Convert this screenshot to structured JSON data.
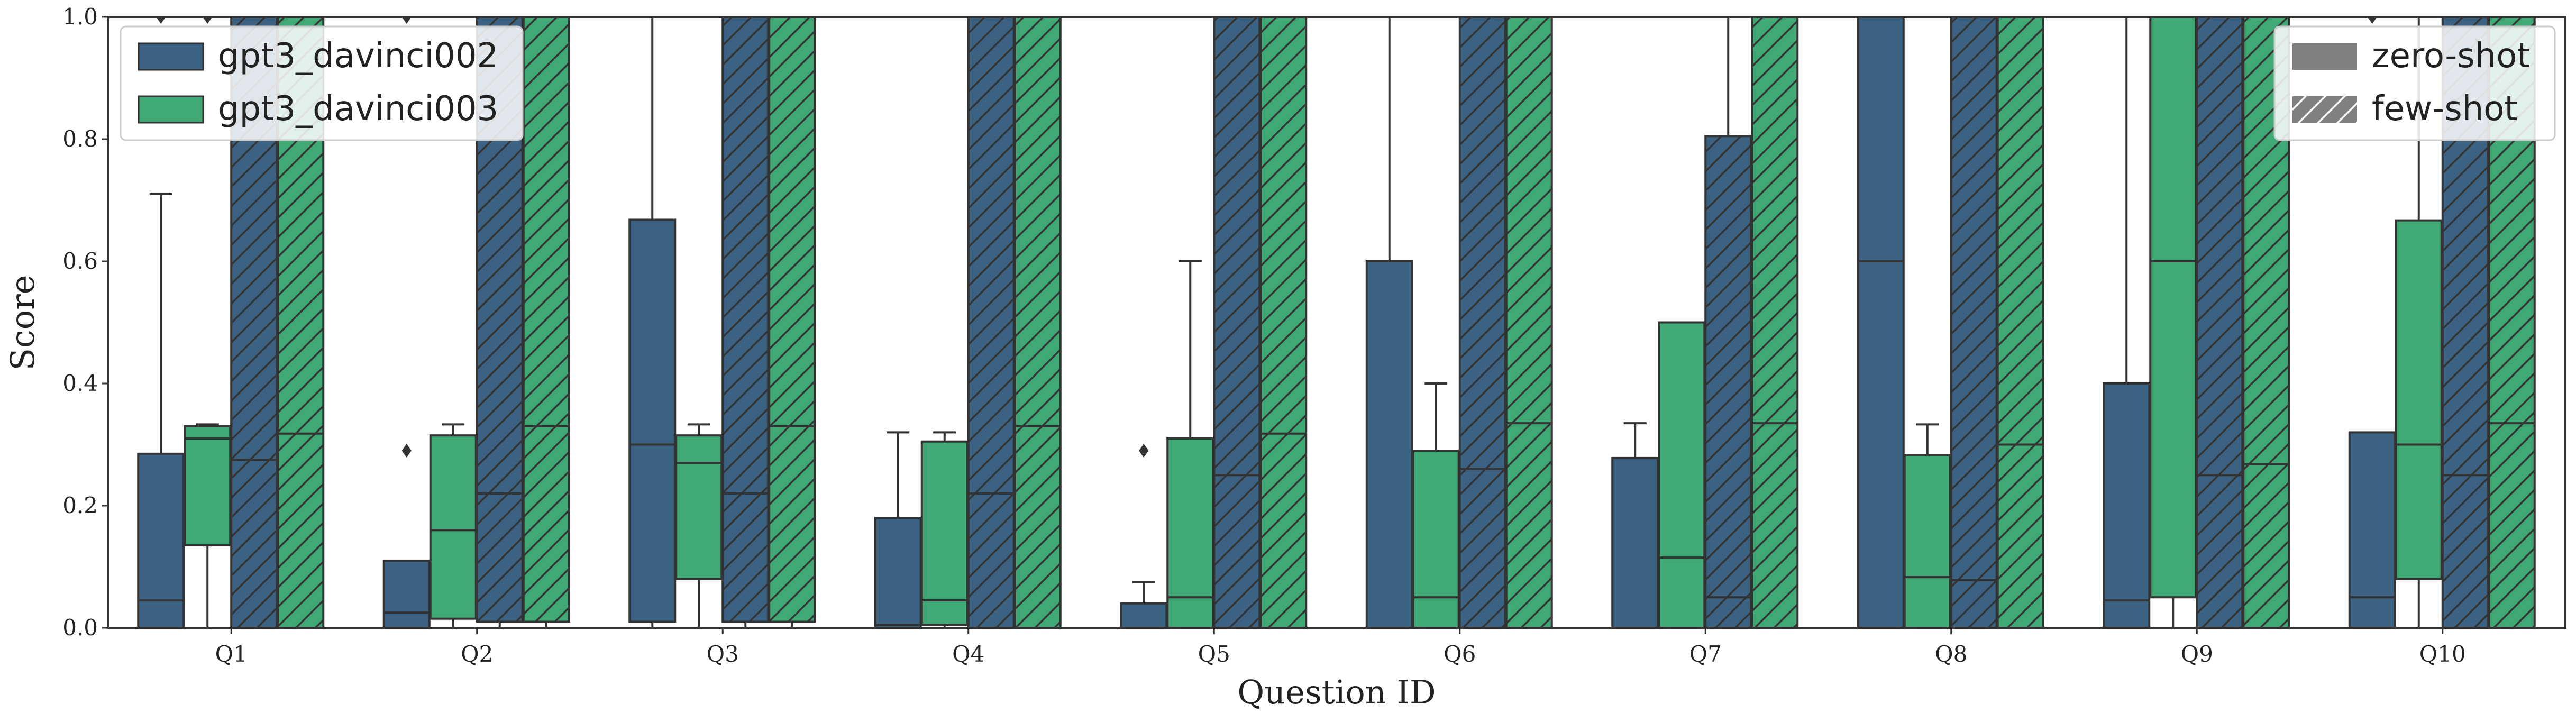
{
  "chart_data": {
    "type": "box",
    "title": "",
    "xlabel": "Question ID",
    "ylabel": "Score",
    "ylim": [
      0,
      1
    ],
    "yticks": [
      "0.0",
      "0.2",
      "0.4",
      "0.6",
      "0.8",
      "1.0"
    ],
    "grid": false,
    "categories": [
      "Q1",
      "Q2",
      "Q3",
      "Q4",
      "Q5",
      "Q6",
      "Q7",
      "Q8",
      "Q9",
      "Q10"
    ],
    "colors": {
      "gpt3_davinci002": "#3b6282",
      "gpt3_davinci003": "#3fa874",
      "edge": "#333333"
    },
    "legend_models": {
      "placement": "top-left",
      "entries": [
        "gpt3_davinci002",
        "gpt3_davinci003"
      ]
    },
    "legend_settings": {
      "placement": "top-right",
      "entries": [
        "zero-shot",
        "few-shot"
      ]
    },
    "series": [
      {
        "model": "gpt3_davinci002",
        "setting": "zero-shot",
        "boxes": [
          {
            "q1": 0,
            "median": 0.045,
            "q3": 0.285,
            "wlo": 0,
            "whi": 0.71,
            "fliers": [
              1.0
            ]
          },
          {
            "q1": 0,
            "median": 0.025,
            "q3": 0.11,
            "wlo": 0,
            "whi": 0.11,
            "fliers": [
              0.29,
              1.0
            ]
          },
          {
            "q1": 0.01,
            "median": 0.3,
            "q3": 0.668,
            "wlo": 0,
            "whi": 1.0,
            "fliers": []
          },
          {
            "q1": 0,
            "median": 0.005,
            "q3": 0.18,
            "wlo": 0,
            "whi": 0.32,
            "fliers": []
          },
          {
            "q1": 0,
            "median": 0.0,
            "q3": 0.04,
            "wlo": 0,
            "whi": 0.075,
            "fliers": [
              0.29
            ]
          },
          {
            "q1": 0,
            "median": 0.0,
            "q3": 0.6,
            "wlo": 0,
            "whi": 1.0,
            "fliers": []
          },
          {
            "q1": 0,
            "median": 0.0,
            "q3": 0.278,
            "wlo": 0,
            "whi": 0.335,
            "fliers": []
          },
          {
            "q1": 0,
            "median": 0.6,
            "q3": 1.0,
            "wlo": 0,
            "whi": 1.0,
            "fliers": []
          },
          {
            "q1": 0,
            "median": 0.045,
            "q3": 0.4,
            "wlo": 0,
            "whi": 1.0,
            "fliers": []
          },
          {
            "q1": 0,
            "median": 0.05,
            "q3": 0.32,
            "wlo": 0,
            "whi": 0.32,
            "fliers": [
              1.0
            ]
          }
        ]
      },
      {
        "model": "gpt3_davinci003",
        "setting": "zero-shot",
        "boxes": [
          {
            "q1": 0.135,
            "median": 0.31,
            "q3": 0.33,
            "wlo": 0,
            "whi": 0.333,
            "fliers": [
              1.0
            ]
          },
          {
            "q1": 0.015,
            "median": 0.16,
            "q3": 0.315,
            "wlo": 0,
            "whi": 0.333,
            "fliers": []
          },
          {
            "q1": 0.08,
            "median": 0.27,
            "q3": 0.315,
            "wlo": 0,
            "whi": 0.333,
            "fliers": []
          },
          {
            "q1": 0.005,
            "median": 0.045,
            "q3": 0.305,
            "wlo": 0,
            "whi": 0.32,
            "fliers": []
          },
          {
            "q1": 0,
            "median": 0.05,
            "q3": 0.31,
            "wlo": 0,
            "whi": 0.6,
            "fliers": []
          },
          {
            "q1": 0,
            "median": 0.05,
            "q3": 0.29,
            "wlo": 0,
            "whi": 0.4,
            "fliers": []
          },
          {
            "q1": 0,
            "median": 0.115,
            "q3": 0.5,
            "wlo": 0,
            "whi": 0.5,
            "fliers": []
          },
          {
            "q1": 0,
            "median": 0.083,
            "q3": 0.283,
            "wlo": 0,
            "whi": 0.333,
            "fliers": []
          },
          {
            "q1": 0.05,
            "median": 0.6,
            "q3": 1.0,
            "wlo": 0,
            "whi": 1.0,
            "fliers": []
          },
          {
            "q1": 0.08,
            "median": 0.3,
            "q3": 0.667,
            "wlo": 0,
            "whi": 1.0,
            "fliers": []
          }
        ]
      },
      {
        "model": "gpt3_davinci002",
        "setting": "few-shot",
        "boxes": [
          {
            "q1": 0,
            "median": 0.275,
            "q3": 1.0,
            "wlo": 0,
            "whi": 1.0,
            "fliers": []
          },
          {
            "q1": 0.01,
            "median": 0.22,
            "q3": 1.0,
            "wlo": 0,
            "whi": 1.0,
            "fliers": []
          },
          {
            "q1": 0.01,
            "median": 0.22,
            "q3": 1.0,
            "wlo": 0,
            "whi": 1.0,
            "fliers": []
          },
          {
            "q1": 0,
            "median": 0.22,
            "q3": 1.0,
            "wlo": 0,
            "whi": 1.0,
            "fliers": []
          },
          {
            "q1": 0,
            "median": 0.25,
            "q3": 1.0,
            "wlo": 0,
            "whi": 1.0,
            "fliers": []
          },
          {
            "q1": 0,
            "median": 0.26,
            "q3": 1.0,
            "wlo": 0,
            "whi": 1.0,
            "fliers": []
          },
          {
            "q1": 0,
            "median": 0.05,
            "q3": 0.805,
            "wlo": 0,
            "whi": 1.0,
            "fliers": []
          },
          {
            "q1": 0,
            "median": 0.078,
            "q3": 1.0,
            "wlo": 0,
            "whi": 1.0,
            "fliers": []
          },
          {
            "q1": 0,
            "median": 0.25,
            "q3": 1.0,
            "wlo": 0,
            "whi": 1.0,
            "fliers": []
          },
          {
            "q1": 0,
            "median": 0.25,
            "q3": 1.0,
            "wlo": 0,
            "whi": 1.0,
            "fliers": []
          }
        ]
      },
      {
        "model": "gpt3_davinci003",
        "setting": "few-shot",
        "boxes": [
          {
            "q1": 0,
            "median": 0.318,
            "q3": 1.0,
            "wlo": 0,
            "whi": 1.0,
            "fliers": []
          },
          {
            "q1": 0.01,
            "median": 0.33,
            "q3": 1.0,
            "wlo": 0,
            "whi": 1.0,
            "fliers": []
          },
          {
            "q1": 0.01,
            "median": 0.33,
            "q3": 1.0,
            "wlo": 0,
            "whi": 1.0,
            "fliers": []
          },
          {
            "q1": 0,
            "median": 0.33,
            "q3": 1.0,
            "wlo": 0,
            "whi": 1.0,
            "fliers": []
          },
          {
            "q1": 0,
            "median": 0.318,
            "q3": 1.0,
            "wlo": 0,
            "whi": 1.0,
            "fliers": []
          },
          {
            "q1": 0,
            "median": 0.335,
            "q3": 1.0,
            "wlo": 0,
            "whi": 1.0,
            "fliers": []
          },
          {
            "q1": 0,
            "median": 0.335,
            "q3": 1.0,
            "wlo": 0,
            "whi": 1.0,
            "fliers": []
          },
          {
            "q1": 0,
            "median": 0.3,
            "q3": 1.0,
            "wlo": 0,
            "whi": 1.0,
            "fliers": []
          },
          {
            "q1": 0,
            "median": 0.268,
            "q3": 1.0,
            "wlo": 0,
            "whi": 1.0,
            "fliers": []
          },
          {
            "q1": 0,
            "median": 0.335,
            "q3": 1.0,
            "wlo": 0,
            "whi": 1.0,
            "fliers": []
          }
        ]
      }
    ]
  }
}
